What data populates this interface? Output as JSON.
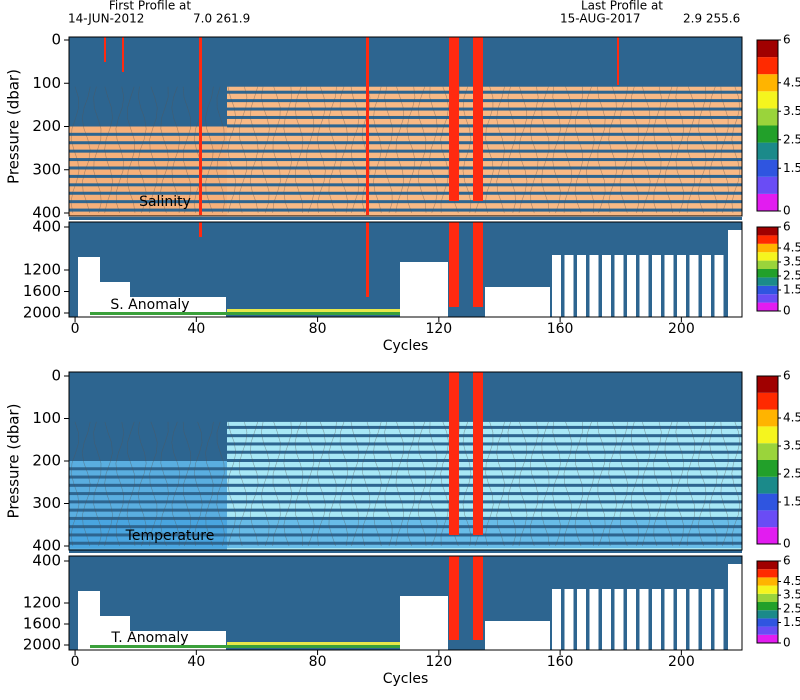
{
  "chart_data": [
    {
      "type": "heatmap",
      "title": "Salinity",
      "ylabel": "Pressure (dbar)",
      "annotations": [
        "First Profile at",
        "14-JUN-2012",
        "7.0   261.9",
        "Last Profile at",
        "15-AUG-2017",
        "2.9   255.6"
      ],
      "xlim": [
        -2,
        220
      ],
      "ylim": [
        0,
        400
      ],
      "yticks": [
        0,
        100,
        200,
        300,
        400
      ],
      "colorbar": {
        "lim": [
          0,
          6
        ],
        "ticks": [
          6,
          4.5,
          3.5,
          2.5,
          1.5,
          0
        ],
        "colors": [
          "#e21cf0",
          "#6a4cf5",
          "#2f55e0",
          "#1b8a8a",
          "#22a02a",
          "#9ad43b",
          "#f5f51e",
          "#ffb400",
          "#ff2a00",
          "#a00000"
        ]
      }
    },
    {
      "type": "heatmap",
      "title": "S. Anomaly",
      "xlabel": "Cycles",
      "xlim": [
        -2,
        220
      ],
      "xticks": [
        0,
        40,
        80,
        120,
        160,
        200
      ],
      "ylim": [
        400,
        2000
      ],
      "yticks": [
        400,
        1200,
        1600,
        2000
      ],
      "colorbar": {
        "lim": [
          0,
          6
        ],
        "ticks": [
          6,
          4.5,
          3.5,
          2.5,
          1.5,
          0
        ],
        "colors": [
          "#e21cf0",
          "#6a4cf5",
          "#2f55e0",
          "#1b8a8a",
          "#22a02a",
          "#9ad43b",
          "#f5f51e",
          "#ffb400",
          "#ff2a00",
          "#a00000"
        ]
      }
    },
    {
      "type": "heatmap",
      "title": "Temperature",
      "ylabel": "Pressure (dbar)",
      "xlim": [
        -2,
        220
      ],
      "ylim": [
        0,
        400
      ],
      "yticks": [
        0,
        100,
        200,
        300,
        400
      ],
      "colorbar": {
        "lim": [
          0,
          6
        ],
        "ticks": [
          6,
          4.5,
          3.5,
          2.5,
          1.5,
          0
        ],
        "colors": [
          "#e21cf0",
          "#6a4cf5",
          "#2f55e0",
          "#1b8a8a",
          "#22a02a",
          "#9ad43b",
          "#f5f51e",
          "#ffb400",
          "#ff2a00",
          "#a00000"
        ]
      }
    },
    {
      "type": "heatmap",
      "title": "T. Anomaly",
      "xlabel": "Cycles",
      "xlim": [
        -2,
        220
      ],
      "xticks": [
        0,
        40,
        80,
        120,
        160,
        200
      ],
      "ylim": [
        400,
        2000
      ],
      "yticks": [
        400,
        1200,
        1600,
        2000
      ],
      "colorbar": {
        "lim": [
          0,
          6
        ],
        "ticks": [
          6,
          4.5,
          3.5,
          2.5,
          1.5,
          0
        ],
        "colors": [
          "#e21cf0",
          "#6a4cf5",
          "#2f55e0",
          "#1b8a8a",
          "#22a02a",
          "#9ad43b",
          "#f5f51e",
          "#ffb400",
          "#ff2a00",
          "#a00000"
        ]
      }
    }
  ]
}
